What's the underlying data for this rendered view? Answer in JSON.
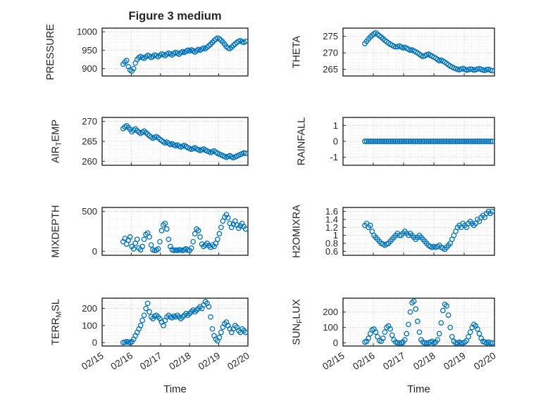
{
  "figure_title": "Figure 3 medium",
  "style": {
    "marker_color": "#0072BD",
    "axis_color": "#262626",
    "grid_color": "#bdbdbd",
    "minor_grid_color": "#e4e4e4",
    "background": "#ffffff"
  },
  "chart_data": {
    "type": "scatter",
    "marker": "open-circle",
    "grid": "on-dotted-major-and-minor",
    "xlabel": "Time",
    "xlim": [
      0,
      5
    ],
    "xticks": [
      0,
      1,
      2,
      3,
      4,
      5
    ],
    "xticklabels": [
      "02/15",
      "02/16",
      "02/17",
      "02/18",
      "02/19",
      "02/20"
    ],
    "x_minor_step": 0.25,
    "x_units_days_since": "02/15",
    "x": [
      0.72,
      0.78,
      0.84,
      0.9,
      0.96,
      1.02,
      1.08,
      1.14,
      1.2,
      1.26,
      1.32,
      1.38,
      1.44,
      1.5,
      1.56,
      1.62,
      1.68,
      1.74,
      1.8,
      1.86,
      1.92,
      1.98,
      2.04,
      2.1,
      2.16,
      2.22,
      2.28,
      2.34,
      2.4,
      2.46,
      2.52,
      2.58,
      2.64,
      2.7,
      2.76,
      2.82,
      2.88,
      2.94,
      3.0,
      3.06,
      3.12,
      3.18,
      3.24,
      3.3,
      3.36,
      3.42,
      3.48,
      3.54,
      3.6,
      3.66,
      3.72,
      3.78,
      3.84,
      3.9,
      3.96,
      4.02,
      4.08,
      4.14,
      4.2,
      4.26,
      4.32,
      4.38,
      4.44,
      4.5,
      4.56,
      4.62,
      4.68,
      4.74,
      4.8,
      4.86,
      4.92
    ],
    "subplots": [
      {
        "name": "PRESSURE",
        "title": "Figure 3 medium",
        "ylabel": "PRESSURE",
        "ylim": [
          880,
          1010
        ],
        "yticks": [
          900,
          950,
          1000
        ],
        "show_x_labels": false,
        "y": [
          912,
          918,
          922,
          905,
          896,
          893,
          900,
          915,
          925,
          930,
          933,
          930,
          928,
          932,
          936,
          934,
          930,
          933,
          937,
          935,
          932,
          936,
          940,
          938,
          935,
          939,
          942,
          940,
          937,
          941,
          944,
          942,
          939,
          943,
          946,
          944,
          947,
          950,
          948,
          951,
          948,
          945,
          949,
          952,
          950,
          953,
          956,
          954,
          958,
          962,
          966,
          971,
          976,
          980,
          983,
          981,
          977,
          972,
          966,
          960,
          956,
          954,
          958,
          963,
          967,
          971,
          974,
          976,
          973,
          971,
          974
        ]
      },
      {
        "name": "THETA",
        "ylabel": "THETA",
        "ylim": [
          263,
          277.5
        ],
        "yticks": [
          265,
          270,
          275
        ],
        "show_x_labels": false,
        "y": [
          272.8,
          273.5,
          274.2,
          274.8,
          275.3,
          275.8,
          276.1,
          275.6,
          275.2,
          274.8,
          274.3,
          273.8,
          273.4,
          273.0,
          272.6,
          272.3,
          272.0,
          271.8,
          271.9,
          272.1,
          271.8,
          271.5,
          271.7,
          271.4,
          271.1,
          270.8,
          270.9,
          270.6,
          270.3,
          270.0,
          269.6,
          269.2,
          268.9,
          269.1,
          269.4,
          269.6,
          269.3,
          269.0,
          268.7,
          268.4,
          268.0,
          267.6,
          267.8,
          267.5,
          267.2,
          266.8,
          266.4,
          266.0,
          265.7,
          265.4,
          265.2,
          265.0,
          264.9,
          265.1,
          265.3,
          265.0,
          264.8,
          264.9,
          265.1,
          265.0,
          264.8,
          264.9,
          265.1,
          265.2,
          265.0,
          264.8,
          264.7,
          264.9,
          265.0,
          264.8,
          264.6
        ]
      },
      {
        "name": "AIR_TEMP",
        "ylabel": "AIR_TEMP",
        "ylim": [
          259,
          271
        ],
        "yticks": [
          260,
          265,
          270
        ],
        "show_x_labels": false,
        "y": [
          268.2,
          268.6,
          268.9,
          268.5,
          268.0,
          267.4,
          267.8,
          268.1,
          267.7,
          267.3,
          267.0,
          267.3,
          267.6,
          267.2,
          266.8,
          266.4,
          266.1,
          265.8,
          266.0,
          266.2,
          265.9,
          265.5,
          265.2,
          264.9,
          264.6,
          264.8,
          264.5,
          264.2,
          264.4,
          264.1,
          263.9,
          264.1,
          263.8,
          263.6,
          263.8,
          264.0,
          263.7,
          263.4,
          263.2,
          263.0,
          263.2,
          263.4,
          263.1,
          262.9,
          262.7,
          262.9,
          263.1,
          262.8,
          262.6,
          262.4,
          262.2,
          262.4,
          262.6,
          262.3,
          262.0,
          261.8,
          261.6,
          261.4,
          261.2,
          261.0,
          261.2,
          261.4,
          261.1,
          260.9,
          261.1,
          261.3,
          261.5,
          261.7,
          261.9,
          262.1,
          262.0
        ]
      },
      {
        "name": "RAINFALL",
        "ylabel": "RAINFALL",
        "ylim": [
          -1.5,
          1.5
        ],
        "yticks": [
          -1,
          0,
          1
        ],
        "show_x_labels": false,
        "y": [
          0,
          0,
          0,
          0,
          0,
          0,
          0,
          0,
          0,
          0,
          0,
          0,
          0,
          0,
          0,
          0,
          0,
          0,
          0,
          0,
          0,
          0,
          0,
          0,
          0,
          0,
          0,
          0,
          0,
          0,
          0,
          0,
          0,
          0,
          0,
          0,
          0,
          0,
          0,
          0,
          0,
          0,
          0,
          0,
          0,
          0,
          0,
          0,
          0,
          0,
          0,
          0,
          0,
          0,
          0,
          0,
          0,
          0,
          0,
          0,
          0,
          0,
          0,
          0,
          0,
          0,
          0,
          0,
          0,
          0,
          0
        ]
      },
      {
        "name": "MIXDEPTH",
        "ylabel": "MIXDEPTH",
        "ylim": [
          -50,
          550
        ],
        "yticks": [
          0,
          500
        ],
        "show_x_labels": false,
        "y": [
          120,
          160,
          90,
          140,
          180,
          60,
          30,
          100,
          150,
          40,
          20,
          60,
          150,
          210,
          230,
          180,
          80,
          20,
          10,
          15,
          30,
          120,
          260,
          330,
          350,
          280,
          150,
          60,
          20,
          10,
          15,
          10,
          20,
          15,
          10,
          20,
          30,
          15,
          10,
          40,
          120,
          220,
          280,
          260,
          180,
          90,
          60,
          80,
          100,
          70,
          50,
          80,
          60,
          100,
          150,
          220,
          300,
          380,
          430,
          460,
          420,
          350,
          300,
          340,
          380,
          330,
          290,
          320,
          350,
          310,
          280
        ]
      },
      {
        "name": "H2OMIXRA",
        "ylabel": "H2OMIXRA",
        "ylim": [
          0.5,
          1.7
        ],
        "yticks": [
          0.6,
          0.8,
          1,
          1.2,
          1.4,
          1.6
        ],
        "show_x_labels": false,
        "y": [
          1.25,
          1.3,
          1.2,
          1.25,
          1.1,
          1.0,
          0.95,
          0.9,
          0.85,
          0.8,
          0.78,
          0.75,
          0.78,
          0.8,
          0.85,
          0.9,
          0.95,
          1.0,
          1.05,
          1.0,
          1.0,
          1.05,
          1.1,
          1.05,
          1.0,
          1.05,
          1.0,
          0.95,
          0.9,
          0.95,
          1.0,
          0.95,
          0.9,
          0.85,
          0.8,
          0.75,
          0.72,
          0.7,
          0.72,
          0.7,
          0.72,
          0.75,
          0.7,
          0.68,
          0.65,
          0.7,
          0.75,
          0.8,
          0.9,
          1.0,
          1.1,
          1.2,
          1.25,
          1.2,
          1.3,
          1.25,
          1.2,
          1.3,
          1.35,
          1.3,
          1.25,
          1.3,
          1.4,
          1.35,
          1.45,
          1.5,
          1.45,
          1.55,
          1.6,
          1.55,
          1.6
        ]
      },
      {
        "name": "TERR_MSL",
        "ylabel": "TERR_MSL",
        "ylim": [
          -20,
          260
        ],
        "yticks": [
          0,
          100,
          200
        ],
        "show_x_labels": true,
        "y": [
          0,
          2,
          5,
          3,
          0,
          5,
          20,
          40,
          60,
          80,
          100,
          130,
          160,
          200,
          230,
          180,
          150,
          140,
          155,
          160,
          150,
          140,
          120,
          100,
          130,
          150,
          160,
          150,
          145,
          155,
          150,
          160,
          150,
          140,
          150,
          160,
          170,
          160,
          170,
          180,
          190,
          180,
          190,
          200,
          210,
          200,
          220,
          240,
          230,
          210,
          150,
          80,
          40,
          20,
          10,
          30,
          60,
          90,
          110,
          120,
          100,
          80,
          60,
          80,
          100,
          90,
          70,
          60,
          80,
          70,
          60
        ]
      },
      {
        "name": "SUN_FLUX",
        "ylabel": "SUN_FLUX",
        "ylim": [
          -20,
          290
        ],
        "yticks": [
          0,
          100,
          200
        ],
        "show_x_labels": true,
        "y": [
          5,
          10,
          30,
          60,
          85,
          90,
          70,
          40,
          15,
          10,
          30,
          70,
          100,
          110,
          90,
          50,
          20,
          5,
          0,
          0,
          0,
          5,
          20,
          60,
          120,
          200,
          260,
          270,
          220,
          140,
          70,
          20,
          5,
          0,
          0,
          0,
          5,
          10,
          0,
          5,
          20,
          60,
          130,
          210,
          250,
          240,
          180,
          100,
          40,
          10,
          0,
          0,
          5,
          0,
          0,
          5,
          15,
          40,
          70,
          100,
          120,
          110,
          90,
          60,
          30,
          10,
          5,
          0,
          5,
          0,
          0
        ]
      }
    ]
  }
}
